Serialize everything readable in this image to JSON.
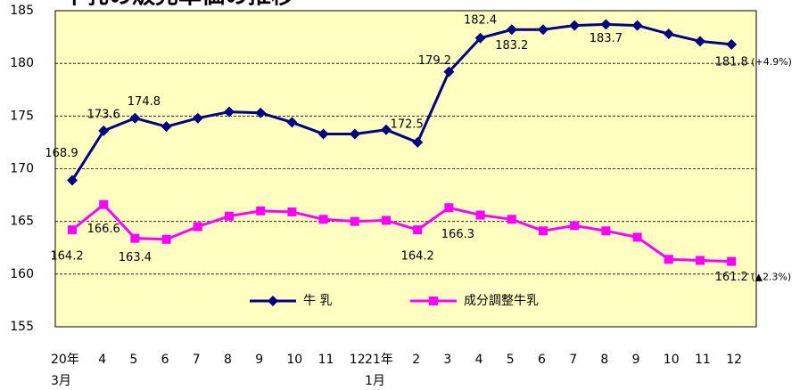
{
  "chart_data": {
    "type": "line",
    "title": "牛乳の販売単価の推移",
    "categories": [
      "20年\n3月",
      "4",
      "5",
      "6",
      "7",
      "8",
      "9",
      "10",
      "11",
      "12",
      "21年\n1月",
      "2",
      "3",
      "4",
      "5",
      "6",
      "7",
      "8",
      "9",
      "10",
      "11",
      "12"
    ],
    "series": [
      {
        "name": "牛 乳",
        "color": "#000080",
        "marker": "diamond",
        "values": [
          168.9,
          173.6,
          174.8,
          174.0,
          174.8,
          175.4,
          175.3,
          174.4,
          173.3,
          173.3,
          173.7,
          172.5,
          179.2,
          182.4,
          183.2,
          183.2,
          183.6,
          183.7,
          183.6,
          182.8,
          182.1,
          181.8
        ],
        "value_labels": [
          "168.9",
          "173.6",
          "174.8",
          null,
          null,
          null,
          null,
          null,
          null,
          null,
          null,
          "172.5",
          "179.2",
          "182.4",
          "183.2",
          null,
          null,
          "183.7",
          null,
          null,
          null,
          "181.8"
        ],
        "change": "(+4.9%)"
      },
      {
        "name": "成分調整牛乳",
        "color": "#ff00ff",
        "marker": "square",
        "values": [
          164.2,
          166.6,
          163.4,
          163.3,
          164.5,
          165.5,
          166.0,
          165.9,
          165.2,
          165.0,
          165.1,
          164.2,
          166.3,
          165.6,
          165.2,
          164.1,
          164.6,
          164.1,
          163.5,
          161.4,
          161.3,
          161.2
        ],
        "value_labels": [
          "164.2",
          "166.6",
          "163.4",
          null,
          null,
          null,
          null,
          null,
          null,
          null,
          null,
          "164.2",
          "166.3",
          null,
          null,
          null,
          null,
          null,
          null,
          null,
          null,
          "161.2"
        ],
        "change": "(▲2.3%)"
      }
    ],
    "ylim": [
      155,
      185
    ],
    "yticks": [
      155,
      160,
      165,
      170,
      175,
      180,
      185
    ],
    "grid": true,
    "background": "#ffffc0"
  }
}
